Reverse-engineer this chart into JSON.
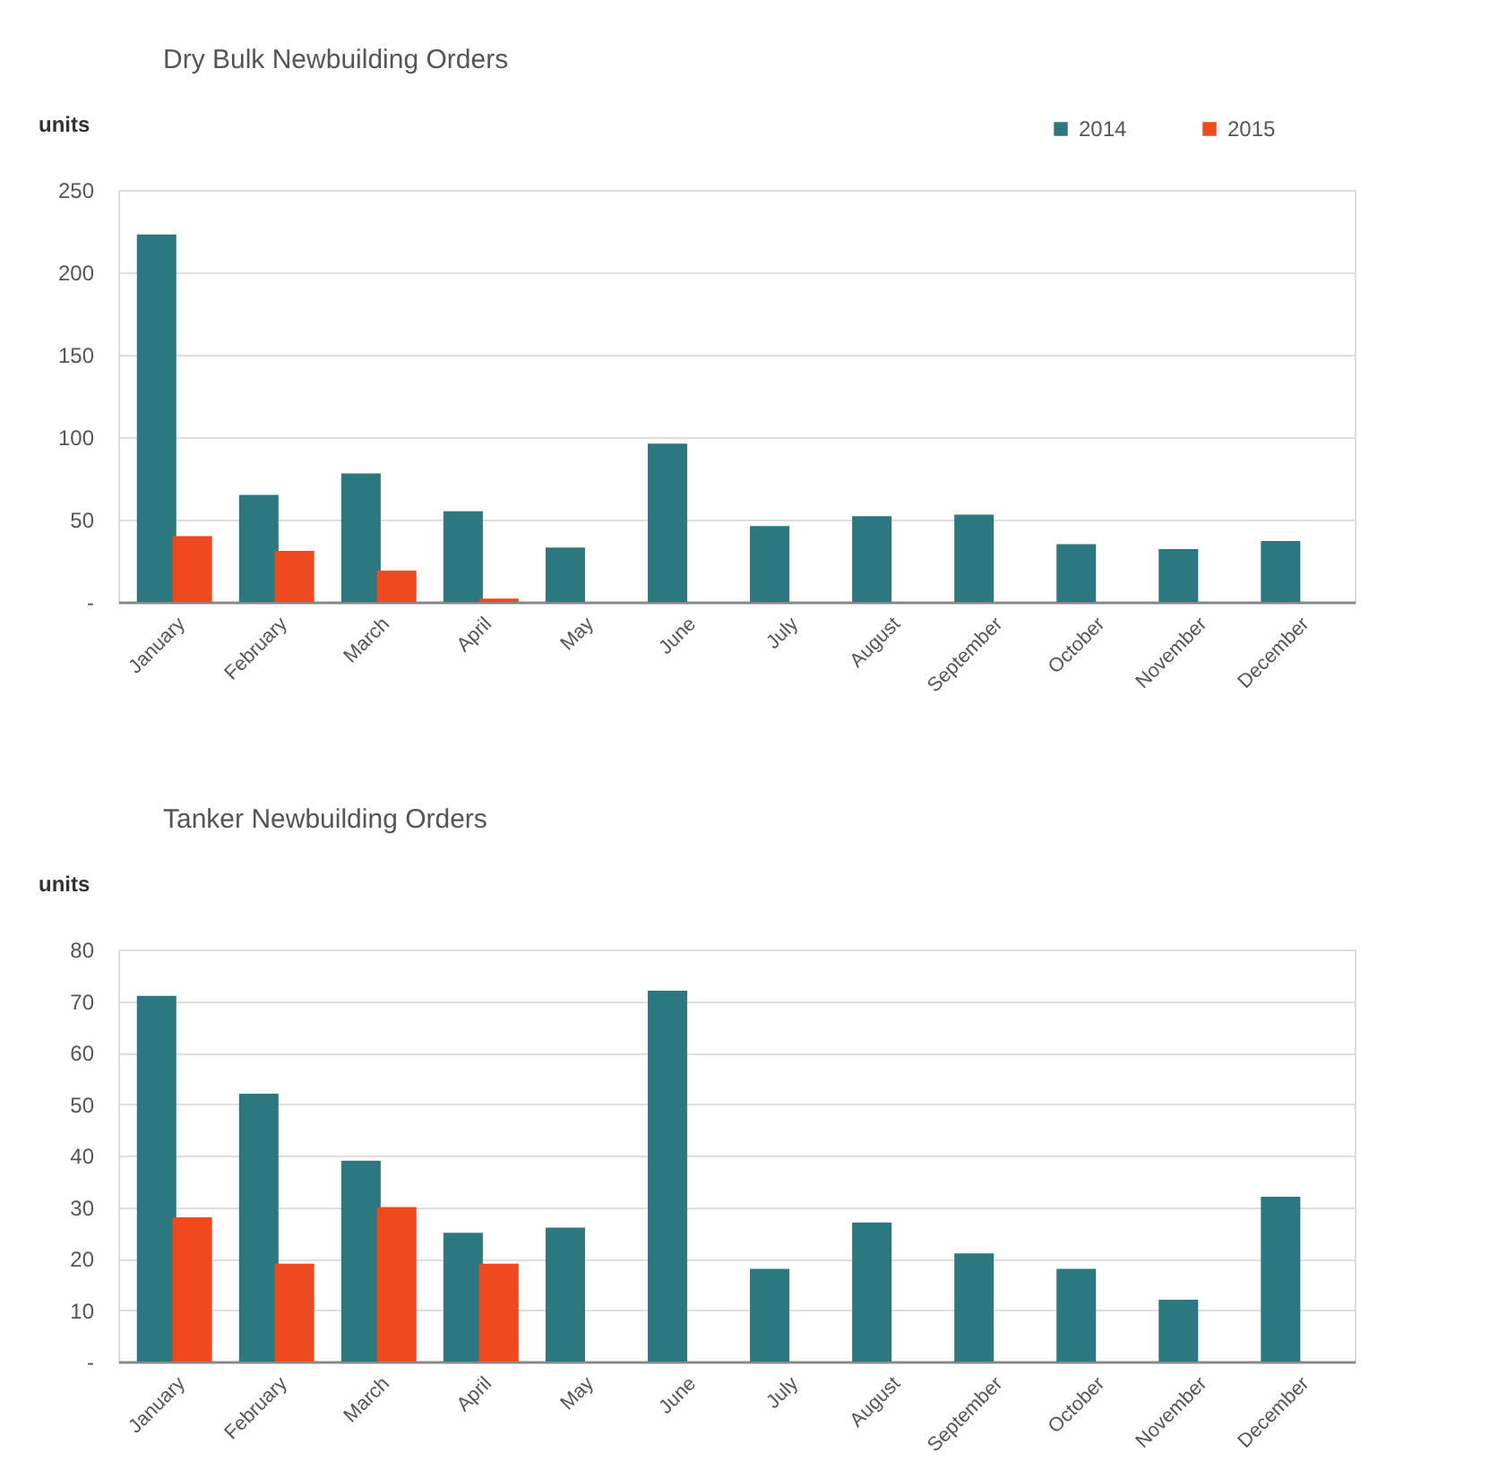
{
  "chart_data": [
    {
      "type": "bar",
      "title": "Dry Bulk Newbuilding Orders",
      "ylabel": "units",
      "categories": [
        "January",
        "February",
        "March",
        "April",
        "May",
        "June",
        "July",
        "August",
        "September",
        "October",
        "November",
        "December"
      ],
      "series": [
        {
          "name": "2014",
          "color": "#2b7880",
          "values": [
            223,
            65,
            78,
            55,
            33,
            96,
            46,
            52,
            53,
            35,
            32,
            37
          ]
        },
        {
          "name": "2015",
          "color": "#ef4a1e",
          "values": [
            40,
            31,
            19,
            2,
            null,
            null,
            null,
            null,
            null,
            null,
            null,
            null
          ]
        }
      ],
      "ylim": [
        0,
        250
      ],
      "yticks": [
        {
          "value": 0,
          "label": "-"
        },
        50,
        100,
        150,
        200,
        250
      ],
      "grid": "y",
      "legend": "top right"
    },
    {
      "type": "bar",
      "title": "Tanker Newbuilding Orders",
      "ylabel": "units",
      "categories": [
        "January",
        "February",
        "March",
        "April",
        "May",
        "June",
        "July",
        "August",
        "September",
        "October",
        "November",
        "December"
      ],
      "series": [
        {
          "name": "2014",
          "color": "#2b7880",
          "values": [
            71,
            52,
            39,
            25,
            26,
            72,
            18,
            27,
            21,
            18,
            12,
            32
          ]
        },
        {
          "name": "2015",
          "color": "#ef4a1e",
          "values": [
            28,
            19,
            30,
            19,
            null,
            null,
            null,
            null,
            null,
            null,
            null,
            null
          ]
        }
      ],
      "ylim": [
        0,
        80
      ],
      "yticks": [
        {
          "value": 0,
          "label": "-"
        },
        10,
        20,
        30,
        40,
        50,
        60,
        70,
        80
      ],
      "grid": "y",
      "legend": "top right"
    }
  ]
}
